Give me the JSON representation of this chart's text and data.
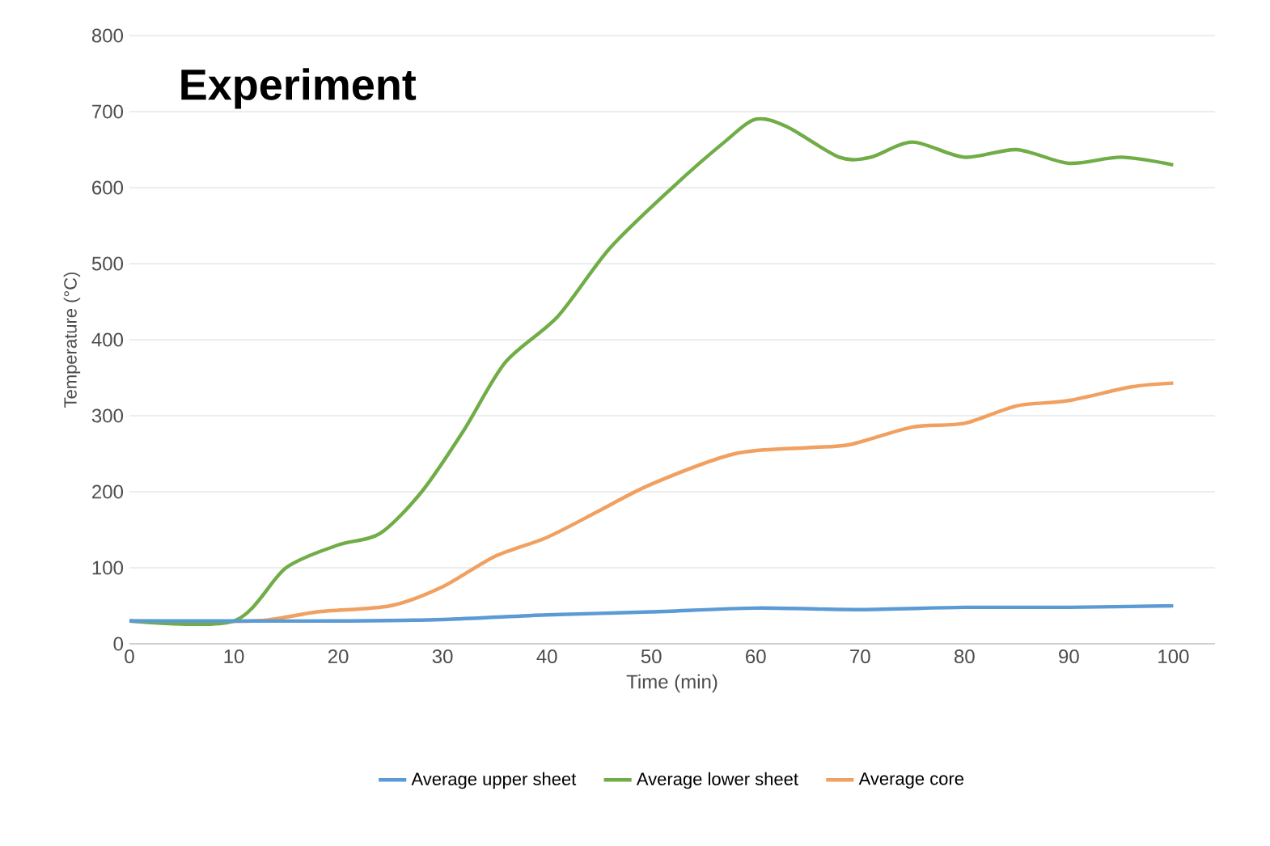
{
  "chart_data": {
    "type": "line",
    "title": "Experiment",
    "xlabel": "Time (min)",
    "ylabel": "Temperature (°C)",
    "xlim": [
      0,
      104
    ],
    "ylim": [
      0,
      800
    ],
    "xticks": [
      0,
      10,
      20,
      30,
      40,
      50,
      60,
      70,
      80,
      90,
      100
    ],
    "yticks": [
      0,
      100,
      200,
      300,
      400,
      500,
      600,
      700,
      800
    ],
    "grid": "y",
    "legend": "bottom",
    "marker": "none",
    "line_style": "solid",
    "series": [
      {
        "name": "Average upper sheet",
        "color": "#5b9bd5",
        "x": [
          0,
          10,
          20,
          30,
          40,
          50,
          60,
          70,
          80,
          90,
          100
        ],
        "values": [
          30,
          30,
          30,
          32,
          38,
          42,
          47,
          45,
          48,
          48,
          50
        ]
      },
      {
        "name": "Average lower sheet",
        "color": "#70ad47",
        "x": [
          0,
          10,
          15,
          20,
          24,
          28,
          32,
          36,
          41,
          46,
          52,
          57,
          60,
          63,
          68,
          71,
          75,
          80,
          85,
          90,
          95,
          100
        ],
        "values": [
          30,
          30,
          100,
          130,
          145,
          200,
          280,
          370,
          430,
          520,
          600,
          660,
          690,
          680,
          640,
          640,
          660,
          640,
          650,
          632,
          640,
          630
        ]
      },
      {
        "name": "Average core",
        "color": "#f0a060",
        "x": [
          0,
          12,
          18,
          25,
          30,
          35,
          40,
          45,
          50,
          58,
          65,
          69,
          75,
          80,
          85,
          90,
          96,
          100
        ],
        "values": [
          30,
          30,
          42,
          50,
          75,
          115,
          140,
          175,
          210,
          250,
          258,
          262,
          285,
          290,
          313,
          320,
          338,
          343
        ]
      }
    ]
  }
}
